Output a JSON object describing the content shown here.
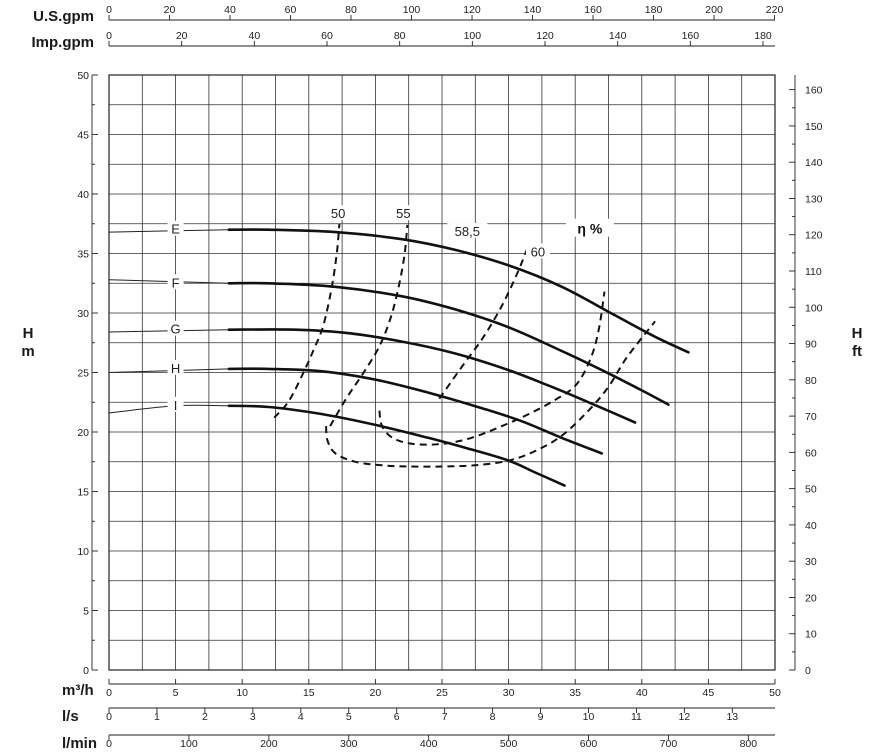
{
  "chart_data": {
    "type": "line",
    "title": "",
    "xlabel": "m³/h",
    "ylabel": "H m",
    "ylabel_right": "H ft",
    "xlim": [
      0,
      50
    ],
    "ylim": [
      0,
      50
    ],
    "ylim_right": [
      0,
      164
    ],
    "grid": true,
    "x_ticks": [
      0,
      5,
      10,
      15,
      20,
      25,
      30,
      35,
      40,
      45,
      50
    ],
    "y_ticks": [
      0,
      5,
      10,
      15,
      20,
      25,
      30,
      35,
      40,
      45,
      50
    ],
    "y_ticks_right": [
      0,
      10,
      20,
      30,
      40,
      50,
      60,
      70,
      80,
      90,
      100,
      110,
      120,
      130,
      140,
      150,
      160
    ],
    "secondary_axes": [
      {
        "label": "U.S.gpm",
        "position": "top",
        "factor": 4.403,
        "ticks": [
          0,
          20,
          40,
          60,
          80,
          100,
          120,
          140,
          160,
          180,
          200,
          220
        ]
      },
      {
        "label": "Imp.gpm",
        "position": "top",
        "factor": 3.666,
        "ticks": [
          0,
          20,
          40,
          60,
          80,
          100,
          120,
          140,
          160,
          180
        ]
      },
      {
        "label": "l/s",
        "position": "bottom",
        "factor": 0.2778,
        "ticks": [
          0,
          1,
          2,
          3,
          4,
          5,
          6,
          7,
          8,
          9,
          10,
          11,
          12,
          13
        ]
      },
      {
        "label": "l/min",
        "position": "bottom",
        "factor": 16.667,
        "ticks": [
          0,
          100,
          200,
          300,
          400,
          500,
          600,
          700,
          800
        ]
      }
    ],
    "series": [
      {
        "name": "E",
        "style": "solid",
        "label_at": [
          5,
          37
        ],
        "points": [
          [
            0,
            36.8
          ],
          [
            9,
            37
          ],
          [
            12,
            37
          ],
          [
            17,
            36.8
          ],
          [
            22,
            36.2
          ],
          [
            26,
            35.3
          ],
          [
            30,
            34
          ],
          [
            34,
            32.2
          ],
          [
            38,
            29.8
          ],
          [
            41,
            28
          ],
          [
            43.5,
            26.7
          ]
        ]
      },
      {
        "name": "F",
        "style": "solid",
        "label_at": [
          5,
          32.5
        ],
        "points": [
          [
            0,
            32.8
          ],
          [
            9,
            32.5
          ],
          [
            12,
            32.5
          ],
          [
            17,
            32.2
          ],
          [
            22,
            31.4
          ],
          [
            26,
            30.3
          ],
          [
            30,
            28.8
          ],
          [
            34,
            26.8
          ],
          [
            37,
            25.2
          ],
          [
            40,
            23.5
          ],
          [
            42,
            22.3
          ]
        ]
      },
      {
        "name": "G",
        "style": "solid",
        "label_at": [
          5,
          28.6
        ],
        "points": [
          [
            0,
            28.4
          ],
          [
            9,
            28.6
          ],
          [
            14,
            28.6
          ],
          [
            18,
            28.3
          ],
          [
            22,
            27.6
          ],
          [
            26,
            26.6
          ],
          [
            30,
            25.2
          ],
          [
            33,
            23.9
          ],
          [
            36,
            22.5
          ],
          [
            39.5,
            20.8
          ]
        ]
      },
      {
        "name": "H",
        "style": "solid",
        "label_at": [
          5,
          25.3
        ],
        "points": [
          [
            0,
            25
          ],
          [
            9,
            25.3
          ],
          [
            12,
            25.3
          ],
          [
            16,
            25.1
          ],
          [
            20,
            24.4
          ],
          [
            24,
            23.3
          ],
          [
            28,
            22
          ],
          [
            31,
            20.9
          ],
          [
            34,
            19.5
          ],
          [
            37,
            18.2
          ]
        ]
      },
      {
        "name": "I",
        "style": "solid",
        "label_at": [
          5,
          22.2
        ],
        "points": [
          [
            0,
            21.6
          ],
          [
            5,
            22.2
          ],
          [
            9,
            22.2
          ],
          [
            12,
            22.1
          ],
          [
            16,
            21.5
          ],
          [
            20,
            20.6
          ],
          [
            24,
            19.5
          ],
          [
            27,
            18.6
          ],
          [
            30,
            17.6
          ],
          [
            32,
            16.6
          ],
          [
            34.2,
            15.5
          ]
        ]
      },
      {
        "name": "50",
        "style": "dashed",
        "label_at": [
          17.2,
          38.3
        ],
        "points": [
          [
            12.4,
            21.2
          ],
          [
            13.5,
            22.6
          ],
          [
            14.6,
            25
          ],
          [
            15.4,
            27
          ],
          [
            16.1,
            29
          ],
          [
            16.7,
            32
          ],
          [
            17.1,
            35
          ],
          [
            17.3,
            37.5
          ]
        ]
      },
      {
        "name": "55",
        "style": "dashed",
        "label_at": [
          22.1,
          38.3
        ],
        "points": [
          [
            16.3,
            20.5
          ],
          [
            16.4,
            19.3
          ],
          [
            17,
            18.2
          ],
          [
            18.5,
            17.5
          ],
          [
            20.5,
            17.2
          ],
          [
            22.5,
            17.1
          ],
          [
            25,
            17.1
          ],
          [
            27.5,
            17.2
          ],
          [
            30,
            17.6
          ],
          [
            32,
            18.4
          ],
          [
            34,
            19.7
          ],
          [
            36,
            21.8
          ],
          [
            37.5,
            23.8
          ],
          [
            38.9,
            26.3
          ],
          [
            41,
            29.3
          ]
        ]
      },
      {
        "name": "58,5",
        "style": "dashed",
        "label_at": [
          26.9,
          36.8
        ],
        "points": [
          [
            16.6,
            20.5
          ],
          [
            17.8,
            22.8
          ],
          [
            19,
            24.8
          ],
          [
            20.3,
            27.2
          ],
          [
            21.2,
            29.8
          ],
          [
            21.8,
            32.5
          ],
          [
            22.2,
            35
          ],
          [
            22.4,
            37.4
          ]
        ]
      },
      {
        "name": "60",
        "style": "dashed",
        "label_at": [
          32.2,
          35.1
        ],
        "points": [
          [
            20.3,
            21.8
          ],
          [
            20.5,
            20.5
          ],
          [
            21.3,
            19.5
          ],
          [
            22.8,
            19
          ],
          [
            25,
            19
          ],
          [
            27.2,
            19.5
          ],
          [
            29.5,
            20.5
          ],
          [
            31.5,
            21.5
          ],
          [
            33.5,
            22.7
          ],
          [
            35.1,
            24
          ],
          [
            36.2,
            26.3
          ],
          [
            36.8,
            28.8
          ],
          [
            37.2,
            31.8
          ]
        ]
      },
      {
        "name": "",
        "style": "dashed",
        "label_at": null,
        "points": [
          [
            24.8,
            22.8
          ],
          [
            26.5,
            25.5
          ],
          [
            28,
            27.8
          ],
          [
            29.4,
            30.4
          ],
          [
            30.6,
            33.2
          ],
          [
            31.4,
            35.4
          ]
        ]
      }
    ],
    "eta_title": "η %",
    "eta_title_at": [
      36.1,
      37
    ]
  }
}
